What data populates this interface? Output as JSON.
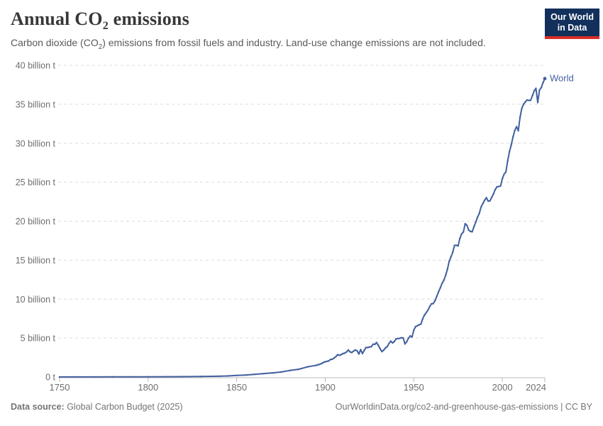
{
  "header": {
    "title_pre": "Annual CO",
    "title_sub": "2",
    "title_post": " emissions",
    "subtitle_pre": "Carbon dioxide (CO",
    "subtitle_sub": "2",
    "subtitle_post": ") emissions from fossil fuels and industry. Land-use change emissions are not included.",
    "logo_line1": "Our World",
    "logo_line2": "in Data"
  },
  "footer": {
    "source_label": "Data source:",
    "source_value": " Global Carbon Budget (2025)",
    "citation": "OurWorldinData.org/co2-and-greenhouse-gas-emissions | CC BY"
  },
  "colors": {
    "line": "#41609f",
    "grid": "#dcdcdc",
    "axis": "#b8b8b8",
    "tick_text": "#6e6e6e",
    "title": "#383838",
    "subtitle": "#5a5a5a",
    "footer_text": "#757575",
    "logo_bg": "#12305b",
    "logo_red": "#dc2e27"
  },
  "chart_data": {
    "type": "line",
    "title": "Annual CO2 emissions",
    "subtitle": "Carbon dioxide (CO2) emissions from fossil fuels and industry. Land-use change emissions are not included.",
    "series_label": "World",
    "unit": "billion t",
    "x_range": [
      1750,
      2024
    ],
    "y_range": [
      0,
      40
    ],
    "grid": true,
    "legend_position": "end-of-line",
    "y_ticks": [
      {
        "v": 0,
        "label": "0 t"
      },
      {
        "v": 5,
        "label": "5 billion t"
      },
      {
        "v": 10,
        "label": "10 billion t"
      },
      {
        "v": 15,
        "label": "15 billion t"
      },
      {
        "v": 20,
        "label": "20 billion t"
      },
      {
        "v": 25,
        "label": "25 billion t"
      },
      {
        "v": 30,
        "label": "30 billion t"
      },
      {
        "v": 35,
        "label": "35 billion t"
      },
      {
        "v": 40,
        "label": "40 billion t"
      }
    ],
    "x_ticks": [
      {
        "v": 1750,
        "label": "1750"
      },
      {
        "v": 1800,
        "label": "1800"
      },
      {
        "v": 1850,
        "label": "1850"
      },
      {
        "v": 1900,
        "label": "1900"
      },
      {
        "v": 1950,
        "label": "1950"
      },
      {
        "v": 2000,
        "label": "2000"
      },
      {
        "v": 2024,
        "label": "2024"
      }
    ],
    "points": [
      [
        1750,
        0.01
      ],
      [
        1760,
        0.011
      ],
      [
        1770,
        0.013
      ],
      [
        1780,
        0.016
      ],
      [
        1790,
        0.02
      ],
      [
        1800,
        0.03
      ],
      [
        1810,
        0.04
      ],
      [
        1820,
        0.05
      ],
      [
        1830,
        0.07
      ],
      [
        1840,
        0.1
      ],
      [
        1845,
        0.14
      ],
      [
        1850,
        0.2
      ],
      [
        1855,
        0.25
      ],
      [
        1860,
        0.34
      ],
      [
        1865,
        0.43
      ],
      [
        1870,
        0.53
      ],
      [
        1875,
        0.64
      ],
      [
        1880,
        0.84
      ],
      [
        1885,
        0.99
      ],
      [
        1890,
        1.3
      ],
      [
        1895,
        1.5
      ],
      [
        1896,
        1.58
      ],
      [
        1897,
        1.64
      ],
      [
        1898,
        1.73
      ],
      [
        1899,
        1.87
      ],
      [
        1900,
        1.95
      ],
      [
        1901,
        2.01
      ],
      [
        1902,
        2.06
      ],
      [
        1903,
        2.25
      ],
      [
        1904,
        2.28
      ],
      [
        1905,
        2.44
      ],
      [
        1906,
        2.61
      ],
      [
        1907,
        2.86
      ],
      [
        1908,
        2.78
      ],
      [
        1909,
        2.87
      ],
      [
        1910,
        3.01
      ],
      [
        1911,
        3.06
      ],
      [
        1912,
        3.21
      ],
      [
        1913,
        3.46
      ],
      [
        1914,
        3.23
      ],
      [
        1915,
        3.14
      ],
      [
        1916,
        3.33
      ],
      [
        1917,
        3.47
      ],
      [
        1918,
        3.36
      ],
      [
        1919,
        2.95
      ],
      [
        1920,
        3.52
      ],
      [
        1921,
        3.01
      ],
      [
        1922,
        3.41
      ],
      [
        1923,
        3.79
      ],
      [
        1924,
        3.77
      ],
      [
        1925,
        3.86
      ],
      [
        1926,
        3.88
      ],
      [
        1927,
        4.21
      ],
      [
        1928,
        4.19
      ],
      [
        1929,
        4.42
      ],
      [
        1930,
        4.06
      ],
      [
        1931,
        3.64
      ],
      [
        1932,
        3.26
      ],
      [
        1933,
        3.44
      ],
      [
        1934,
        3.73
      ],
      [
        1935,
        3.9
      ],
      [
        1936,
        4.29
      ],
      [
        1937,
        4.61
      ],
      [
        1938,
        4.37
      ],
      [
        1939,
        4.55
      ],
      [
        1940,
        4.88
      ],
      [
        1941,
        4.94
      ],
      [
        1942,
        4.96
      ],
      [
        1943,
        5.04
      ],
      [
        1944,
        5.02
      ],
      [
        1945,
        4.25
      ],
      [
        1946,
        4.53
      ],
      [
        1947,
        4.98
      ],
      [
        1948,
        5.27
      ],
      [
        1949,
        5.14
      ],
      [
        1950,
        6.0
      ],
      [
        1951,
        6.47
      ],
      [
        1952,
        6.57
      ],
      [
        1953,
        6.7
      ],
      [
        1954,
        6.79
      ],
      [
        1955,
        7.45
      ],
      [
        1956,
        7.93
      ],
      [
        1957,
        8.25
      ],
      [
        1958,
        8.57
      ],
      [
        1959,
        9.03
      ],
      [
        1960,
        9.39
      ],
      [
        1961,
        9.42
      ],
      [
        1962,
        9.79
      ],
      [
        1963,
        10.35
      ],
      [
        1964,
        10.93
      ],
      [
        1965,
        11.45
      ],
      [
        1966,
        12.03
      ],
      [
        1967,
        12.43
      ],
      [
        1968,
        13.05
      ],
      [
        1969,
        13.82
      ],
      [
        1970,
        14.86
      ],
      [
        1971,
        15.42
      ],
      [
        1972,
        16.01
      ],
      [
        1973,
        16.89
      ],
      [
        1974,
        16.91
      ],
      [
        1975,
        16.82
      ],
      [
        1976,
        17.78
      ],
      [
        1977,
        18.36
      ],
      [
        1978,
        18.61
      ],
      [
        1979,
        19.66
      ],
      [
        1980,
        19.47
      ],
      [
        1981,
        18.86
      ],
      [
        1982,
        18.68
      ],
      [
        1983,
        18.64
      ],
      [
        1984,
        19.29
      ],
      [
        1985,
        19.86
      ],
      [
        1986,
        20.51
      ],
      [
        1987,
        20.98
      ],
      [
        1988,
        21.81
      ],
      [
        1989,
        22.25
      ],
      [
        1990,
        22.68
      ],
      [
        1991,
        23.01
      ],
      [
        1992,
        22.58
      ],
      [
        1993,
        22.61
      ],
      [
        1994,
        23.05
      ],
      [
        1995,
        23.5
      ],
      [
        1996,
        24.06
      ],
      [
        1997,
        24.41
      ],
      [
        1998,
        24.46
      ],
      [
        1999,
        24.52
      ],
      [
        2000,
        25.45
      ],
      [
        2001,
        26.03
      ],
      [
        2002,
        26.32
      ],
      [
        2003,
        27.73
      ],
      [
        2004,
        28.91
      ],
      [
        2005,
        29.76
      ],
      [
        2006,
        30.8
      ],
      [
        2007,
        31.62
      ],
      [
        2008,
        32.13
      ],
      [
        2009,
        31.61
      ],
      [
        2010,
        33.35
      ],
      [
        2011,
        34.45
      ],
      [
        2012,
        35.02
      ],
      [
        2013,
        35.3
      ],
      [
        2014,
        35.55
      ],
      [
        2015,
        35.5
      ],
      [
        2016,
        35.51
      ],
      [
        2017,
        36.1
      ],
      [
        2018,
        36.72
      ],
      [
        2019,
        37.04
      ],
      [
        2020,
        35.23
      ],
      [
        2021,
        36.83
      ],
      [
        2022,
        37.15
      ],
      [
        2023,
        37.79
      ],
      [
        2024,
        38.3
      ]
    ]
  }
}
